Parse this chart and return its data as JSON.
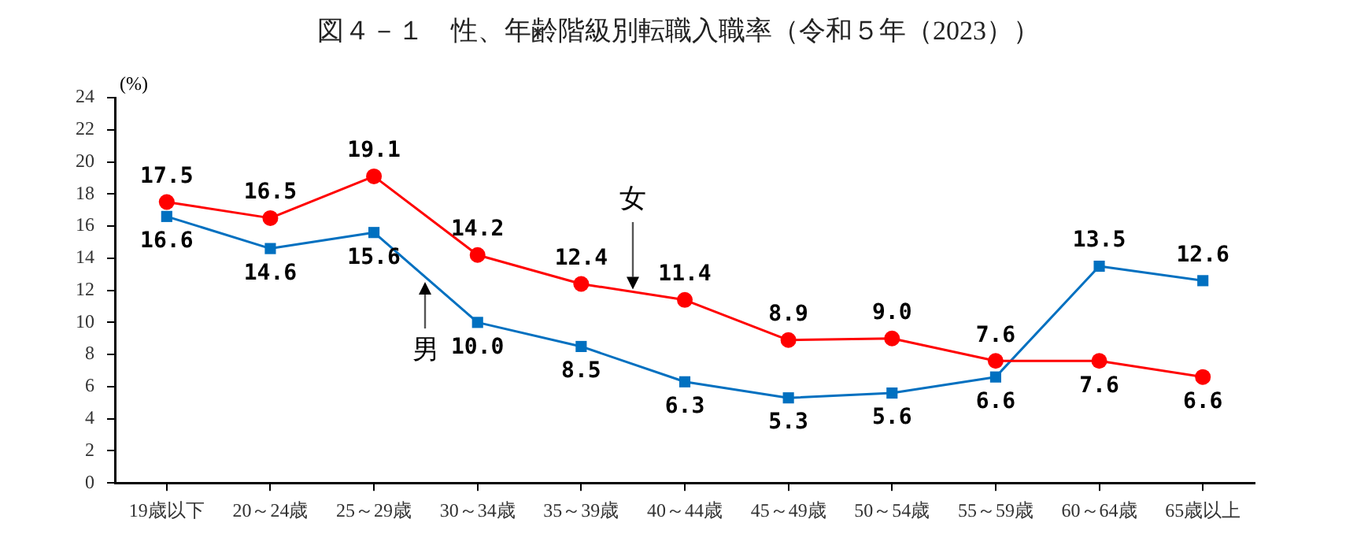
{
  "chart_data": {
    "type": "line",
    "title": "図４－１　性、年齢階級別転職入職率（令和５年（2023））",
    "ylabel": "(%)",
    "categories": [
      "19歳以下",
      "20～24歳",
      "25～29歳",
      "30～34歳",
      "35～39歳",
      "40～44歳",
      "45～49歳",
      "50～54歳",
      "55～59歳",
      "60～64歳",
      "65歳以上"
    ],
    "series": [
      {
        "name": "女",
        "color": "#ff0000",
        "marker": "circle",
        "values": [
          17.5,
          16.5,
          19.1,
          14.2,
          12.4,
          11.4,
          8.9,
          9.0,
          7.6,
          7.6,
          6.6
        ],
        "value_labels": [
          "17.5",
          "16.5",
          "19.1",
          "14.2",
          "12.4",
          "11.4",
          "8.9",
          "9.0",
          "7.6",
          "7.6",
          "6.6"
        ]
      },
      {
        "name": "男",
        "color": "#0070c0",
        "marker": "square",
        "values": [
          16.6,
          14.6,
          15.6,
          10.0,
          8.5,
          6.3,
          5.3,
          5.6,
          6.6,
          13.5,
          12.6
        ],
        "value_labels": [
          "16.6",
          "14.6",
          "15.6",
          "10.0",
          "8.5",
          "6.3",
          "5.3",
          "5.6",
          "6.6",
          "13.5",
          "12.6"
        ]
      }
    ],
    "ylim": [
      0,
      24
    ],
    "yticks": [
      0,
      2,
      4,
      6,
      8,
      10,
      12,
      14,
      16,
      18,
      20,
      22,
      24
    ],
    "grid": false,
    "legend": false
  }
}
